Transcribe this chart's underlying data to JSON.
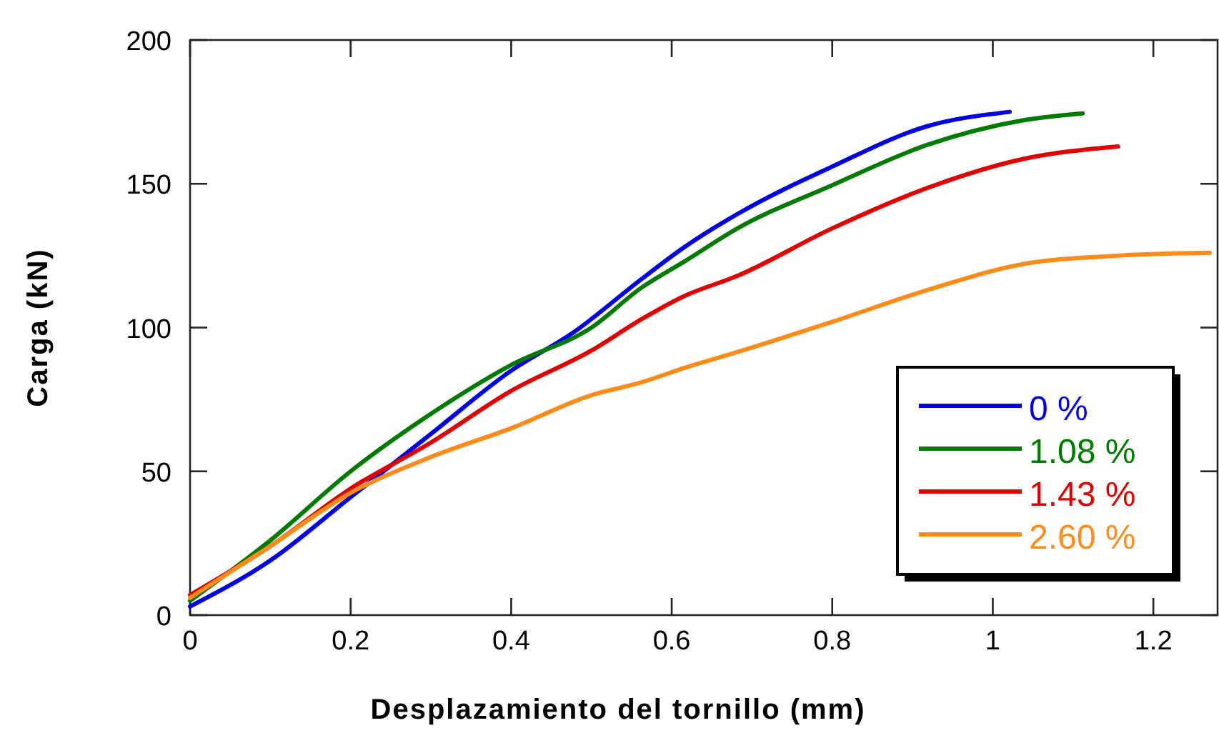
{
  "chart_data": {
    "type": "line",
    "xlabel": "Desplazamiento del tornillo (mm)",
    "ylabel": "Carga (kN)",
    "xlim": [
      0,
      1.28
    ],
    "ylim": [
      0,
      200
    ],
    "xticks": [
      0,
      0.2,
      0.4,
      0.6,
      0.8,
      1,
      1.2
    ],
    "yticks": [
      0,
      50,
      100,
      150,
      200
    ],
    "grid": false,
    "legend": "bottom right",
    "line_style": "solid",
    "marker": "none",
    "series": [
      {
        "name": "0 %",
        "color": "#0000e6",
        "x": [
          0,
          0.1,
          0.2,
          0.3,
          0.4,
          0.476,
          0.563,
          0.616,
          0.682,
          0.8,
          0.918,
          1.021
        ],
        "values": [
          3,
          19,
          41,
          63,
          85,
          98,
          117,
          128,
          139.5,
          156,
          170,
          175
        ]
      },
      {
        "name": "1.08 %",
        "color": "#007a00",
        "x": [
          0,
          0.1,
          0.2,
          0.3,
          0.4,
          0.5,
          0.563,
          0.616,
          0.682,
          0.8,
          0.918,
          1.036,
          1.112
        ],
        "values": [
          5,
          26,
          50,
          70,
          87,
          100,
          114,
          123,
          134.5,
          149.5,
          163.5,
          172,
          174.5
        ]
      },
      {
        "name": "1.43 %",
        "color": "#e00000",
        "x": [
          0,
          0.1,
          0.2,
          0.3,
          0.4,
          0.5,
          0.563,
          0.616,
          0.682,
          0.8,
          0.918,
          1.036,
          1.156
        ],
        "values": [
          7,
          24,
          44,
          60,
          78,
          92,
          103,
          111,
          118,
          134.5,
          148.5,
          158.5,
          163
        ]
      },
      {
        "name": "2.60 %",
        "color": "#ff8c1a",
        "x": [
          0,
          0.1,
          0.2,
          0.3,
          0.4,
          0.5,
          0.563,
          0.616,
          0.682,
          0.8,
          0.918,
          1.036,
          1.155,
          1.27
        ],
        "values": [
          6,
          24,
          42.5,
          55,
          65,
          76.5,
          81,
          86,
          91.5,
          102,
          113,
          122,
          125,
          126
        ]
      }
    ]
  }
}
